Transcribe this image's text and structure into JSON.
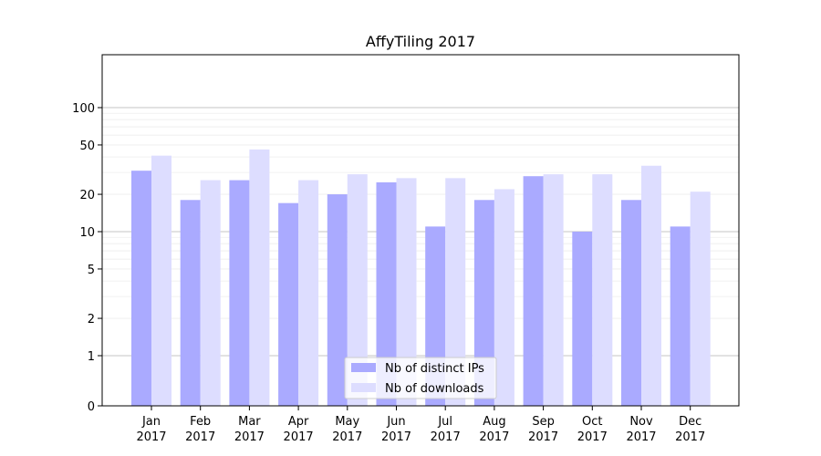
{
  "chart_data": {
    "type": "bar",
    "title": "AffyTiling 2017",
    "xlabel": "",
    "ylabel": "",
    "yscale": "symlog",
    "ylim": [
      0,
      130
    ],
    "yticks": [
      0,
      1,
      2,
      5,
      10,
      20,
      50,
      100
    ],
    "categories": [
      {
        "month": "Jan",
        "year": "2017"
      },
      {
        "month": "Feb",
        "year": "2017"
      },
      {
        "month": "Mar",
        "year": "2017"
      },
      {
        "month": "Apr",
        "year": "2017"
      },
      {
        "month": "May",
        "year": "2017"
      },
      {
        "month": "Jun",
        "year": "2017"
      },
      {
        "month": "Jul",
        "year": "2017"
      },
      {
        "month": "Aug",
        "year": "2017"
      },
      {
        "month": "Sep",
        "year": "2017"
      },
      {
        "month": "Oct",
        "year": "2017"
      },
      {
        "month": "Nov",
        "year": "2017"
      },
      {
        "month": "Dec",
        "year": "2017"
      }
    ],
    "series": [
      {
        "name": "Nb of distinct IPs",
        "color": "#aaaaff",
        "values": [
          31,
          18,
          26,
          17,
          20,
          25,
          11,
          18,
          28,
          10,
          18,
          11
        ]
      },
      {
        "name": "Nb of downloads",
        "color": "#ddddff",
        "values": [
          41,
          26,
          46,
          26,
          29,
          27,
          27,
          22,
          29,
          29,
          34,
          21
        ]
      }
    ],
    "grid": true,
    "legend": "lower-center"
  }
}
